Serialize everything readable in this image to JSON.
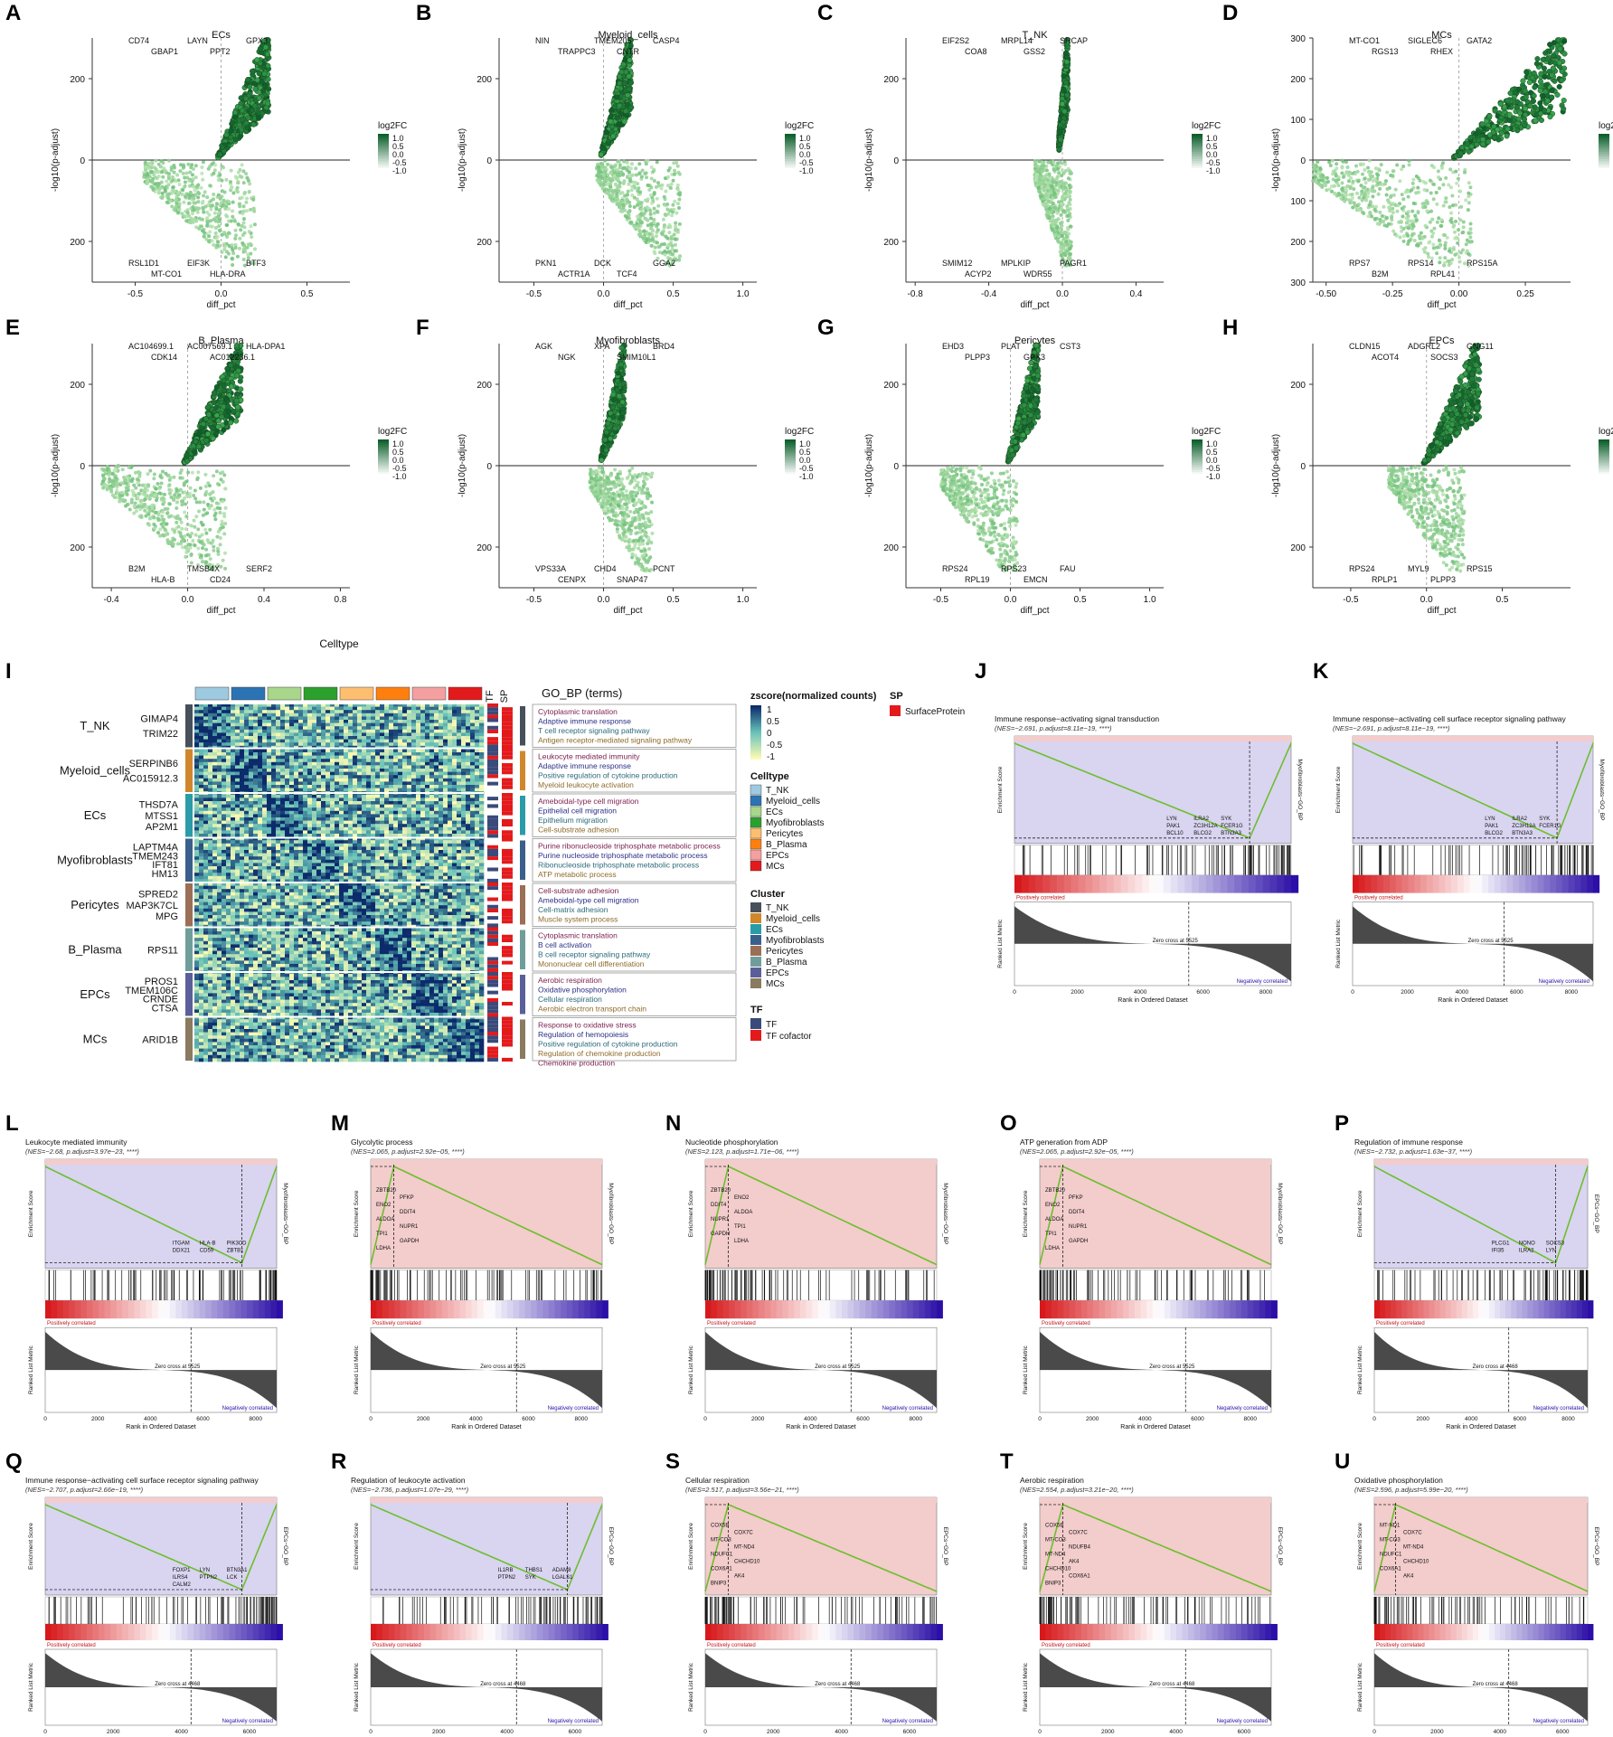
{
  "panel_letters": [
    "A",
    "B",
    "C",
    "D",
    "E",
    "F",
    "G",
    "H",
    "I",
    "J",
    "K",
    "L",
    "M",
    "N",
    "O",
    "P",
    "Q",
    "R",
    "S",
    "T",
    "U"
  ],
  "colors": {
    "green_dark": "#0b5e2a",
    "green_mid": "#3aa650",
    "green_light": "#b9e3b2",
    "gsea_line": "#6cbf2c",
    "gsea_neg_bg": "#d9d4f0",
    "gsea_pos_bg": "#f3cccc",
    "hm_low": "#fdfbb3",
    "hm_mid": "#67c2b9",
    "hm_high": "#0c2b6b"
  },
  "volcano": {
    "xlabel": "diff_pct",
    "ylabel": "-log10(p-adjust)",
    "legend_title": "log2FC",
    "legend_ticks": [
      "1.0",
      "0.5",
      "0.0",
      "-0.5",
      "-1.0"
    ]
  },
  "chart_data": [
    {
      "panel": "A",
      "type": "scatter",
      "title": "ECs",
      "xlim": [
        -0.75,
        0.75
      ],
      "xticks": [
        "-0.5",
        "0.0",
        "0.5"
      ],
      "ylim": [
        -300,
        300
      ],
      "yticks": [
        "200",
        "0",
        "200"
      ],
      "up_labels": [
        "CD74",
        "LAYN",
        "GPX3",
        "GBAP1",
        "PPT2"
      ],
      "down_labels": [
        "RSL1D1",
        "EIF3K",
        "BTF3",
        "MT-CO1",
        "HLA-DRA"
      ]
    },
    {
      "panel": "B",
      "type": "scatter",
      "title": "Myeloid_cells",
      "xlim": [
        -0.75,
        1.1
      ],
      "xticks": [
        "-0.5",
        "0.0",
        "0.5",
        "1.0"
      ],
      "ylim": [
        -300,
        300
      ],
      "yticks": [
        "200",
        "0",
        "200"
      ],
      "up_labels": [
        "NIN",
        "TMEM205",
        "CASP4",
        "TRAPPC3",
        "CNTR"
      ],
      "down_labels": [
        "PKN1",
        "DCK",
        "GGA2",
        "ACTR1A",
        "TCF4"
      ]
    },
    {
      "panel": "C",
      "type": "scatter",
      "title": "T_NK",
      "xlim": [
        -0.85,
        0.55
      ],
      "xticks": [
        "-0.8",
        "-0.4",
        "0.0",
        "0.4"
      ],
      "ylim": [
        -300,
        300
      ],
      "yticks": [
        "200",
        "0",
        "200"
      ],
      "up_labels": [
        "EIF2S2",
        "MRPL14",
        "SRCAP",
        "COA8",
        "GSS2"
      ],
      "down_labels": [
        "SMIM12",
        "MPLKIP",
        "PAGR1",
        "ACYP2",
        "WDR55"
      ]
    },
    {
      "panel": "D",
      "type": "scatter",
      "title": "MCs",
      "xlim": [
        -0.55,
        0.42
      ],
      "xticks": [
        "-0.50",
        "-0.25",
        "0.00",
        "0.25"
      ],
      "ylim": [
        -300,
        300
      ],
      "yticks": [
        "300",
        "200",
        "100",
        "0",
        "100",
        "200",
        "300"
      ],
      "up_labels": [
        "MT-CO1",
        "SIGLEC6",
        "GATA2",
        "RGS13",
        "RHEX"
      ],
      "down_labels": [
        "RPS7",
        "RPS14",
        "RPS15A",
        "B2M",
        "RPL41"
      ]
    },
    {
      "panel": "E",
      "type": "scatter",
      "title": "B_Plasma",
      "xlim": [
        -0.5,
        0.85
      ],
      "xticks": [
        "-0.4",
        "0.0",
        "0.4",
        "0.8"
      ],
      "ylim": [
        -300,
        300
      ],
      "yticks": [
        "200",
        "0",
        "200"
      ],
      "up_labels": [
        "AC104699.1",
        "AC007569.1",
        "HLA-DPA1",
        "CDK14",
        "AC012236.1"
      ],
      "down_labels": [
        "B2M",
        "TMSB4X",
        "SERF2",
        "HLA-B",
        "CD24"
      ]
    },
    {
      "panel": "F",
      "type": "scatter",
      "title": "Myofibroblasts",
      "xlim": [
        -0.75,
        1.1
      ],
      "xticks": [
        "-0.5",
        "0.0",
        "0.5",
        "1.0"
      ],
      "ylim": [
        -300,
        300
      ],
      "yticks": [
        "200",
        "0",
        "200"
      ],
      "up_labels": [
        "AGK",
        "XPA",
        "BRD4",
        "NGK",
        "SMIM10L1"
      ],
      "down_labels": [
        "VPS33A",
        "CHD4",
        "PCNT",
        "CENPX",
        "SNAP47"
      ]
    },
    {
      "panel": "G",
      "type": "scatter",
      "title": "Pericytes",
      "xlim": [
        -0.75,
        1.1
      ],
      "xticks": [
        "-0.5",
        "0.0",
        "0.5",
        "1.0"
      ],
      "ylim": [
        -300,
        300
      ],
      "yticks": [
        "200",
        "0",
        "200"
      ],
      "up_labels": [
        "EHD3",
        "PLAT",
        "CST3",
        "PLPP3",
        "GPX3"
      ],
      "down_labels": [
        "RPS24",
        "RPS23",
        "FAU",
        "RPL19",
        "EMCN"
      ]
    },
    {
      "panel": "H",
      "type": "scatter",
      "title": "EPCs",
      "xlim": [
        -0.75,
        0.95
      ],
      "xticks": [
        "-0.5",
        "0.0",
        "0.5"
      ],
      "ylim": [
        -300,
        300
      ],
      "yticks": [
        "200",
        "0",
        "200"
      ],
      "up_labels": [
        "CLDN15",
        "ADGRL2",
        "GNG11",
        "ACOT4",
        "SOCS3"
      ],
      "down_labels": [
        "RPS24",
        "MYL9",
        "RPS15",
        "RPLP1",
        "PLPP3"
      ]
    },
    {
      "panel": "I",
      "type": "heatmap",
      "title": "Celltype",
      "celltypes": [
        "T_NK",
        "Myeloid_cells",
        "ECs",
        "Myofibroblasts",
        "Pericytes",
        "B_Plasma",
        "EPCs",
        "MCs"
      ],
      "celltype_colors": [
        "#9ecae1",
        "#2b73b4",
        "#a8d68a",
        "#2ca02c",
        "#fdbf6f",
        "#ff7f0e",
        "#f4a0a0",
        "#e31a1c"
      ],
      "cluster_colors": [
        "#46505a",
        "#d0872b",
        "#2a9ca8",
        "#3a5f8a",
        "#9a6f55",
        "#6f9e9a",
        "#5a5f9a",
        "#8a7a60"
      ],
      "row_groups": [
        {
          "cluster": "T_NK",
          "genes": [
            "GIMAP4",
            "TRIM22"
          ]
        },
        {
          "cluster": "Myeloid_cells",
          "genes": [
            "SERPINB6",
            "AC015912.3"
          ]
        },
        {
          "cluster": "ECs",
          "genes": [
            "THSD7A",
            "MTSS1",
            "AP2M1"
          ]
        },
        {
          "cluster": "Myofibroblasts",
          "genes": [
            "LAPTM4A",
            "TMEM243",
            "IFT81",
            "HM13"
          ]
        },
        {
          "cluster": "Pericytes",
          "genes": [
            "SPRED2",
            "MAP3K7CL",
            "MPG"
          ]
        },
        {
          "cluster": "B_Plasma",
          "genes": [
            "RPS11"
          ]
        },
        {
          "cluster": "EPCs",
          "genes": [
            "PROS1",
            "TMEM106C",
            "CRNDE",
            "CTSA"
          ]
        },
        {
          "cluster": "MCs",
          "genes": [
            "ARID1B"
          ]
        }
      ],
      "go_terms": [
        [
          "Cytoplasmic translation",
          "Adaptive immune response",
          "T cell receptor signaling pathway",
          "Antigen receptor-mediated signaling pathway"
        ],
        [
          "Leukocyte mediated immunity",
          "Adaptive immune response",
          "Positive regulation of cytokine production",
          "Myeloid leukocyte activation"
        ],
        [
          "Ameboidal-type cell migration",
          "Epithelial cell migration",
          "Epithelium migration",
          "Cell-substrate adhesion"
        ],
        [
          "Purine ribonucleoside triphosphate metabolic process",
          "Purine nucleoside triphosphate metabolic process",
          "Ribonucleoside triphosphate metabolic process",
          "ATP metabolic process"
        ],
        [
          "Cell-substrate adhesion",
          "Ameboidal-type cell migration",
          "Cell-matrix adhesion",
          "Muscle system process"
        ],
        [
          "Cytoplasmic translation",
          "B cell activation",
          "B cell receptor signaling pathway",
          "Mononuclear cell differentiation"
        ],
        [
          "Aerobic respiration",
          "Oxidative phosphorylation",
          "Cellular respiration",
          "Aerobic electron transport chain"
        ],
        [
          "Response to oxidative stress",
          "Regulation of hemopoiesis",
          "Positive regulation of cytokine production",
          "Regulation of chemokine production",
          "Chemokine production"
        ]
      ],
      "go_term_colors": [
        "#7b1e4e",
        "#2b2f86",
        "#2b6a7a",
        "#8f6b2a"
      ],
      "col_headers": [
        "TF",
        "SP"
      ],
      "go_title": "GO_BP (terms)",
      "legend": {
        "zscore_title": "zscore(normalized counts)",
        "zscore_ticks": [
          "1",
          "0.5",
          "0",
          "-0.5",
          "-1"
        ],
        "celltype_title": "Celltype",
        "cluster_title": "Cluster",
        "tf_title": "TF",
        "tf_items": [
          "TF",
          "TF cofactor"
        ],
        "tf_colors": [
          "#3a4a7a",
          "#e31a1c"
        ],
        "sp_title": "SP",
        "sp_items": [
          "SurfaceProtein"
        ],
        "sp_color": "#e31a1c"
      }
    }
  ],
  "gsea": {
    "y_es_label": "Enrichment Score",
    "y_rank_label": "Ranked List Metric",
    "x_label": "Rank in Ordered Dataset",
    "pos_text": "Positively correlated",
    "neg_text": "Negatively correlated",
    "panels": [
      {
        "panel": "J",
        "title": "Immune response−activating signal transduction",
        "stats": "(NES=−2.691, p.adjust=8.11e−19, ****)",
        "direction": "neg",
        "side": "Myofibroblasts−GO_BP",
        "zero_text": "Zero cross at 5525",
        "xticks": [
          "0",
          "2000",
          "4000",
          "6000",
          "8000"
        ],
        "genes": [
          "LYN",
          "ILRA2",
          "SYK",
          "PAK1",
          "ZC3H12A",
          "FCER1G",
          "BCL10",
          "BLCG2",
          "BTN3A3"
        ]
      },
      {
        "panel": "K",
        "title": "Immune response−activating cell surface receptor signaling pathway",
        "stats": "(NES=−2.691, p.adjust=8.11e−19, ****)",
        "direction": "neg",
        "side": "Myofibroblasts−GO_BP",
        "zero_text": "Zero cross at 5525",
        "xticks": [
          "0",
          "2000",
          "4000",
          "6000",
          "8000"
        ],
        "genes": [
          "LYN",
          "ILRA2",
          "SYK",
          "PAK1",
          "ZC3H12A",
          "FCER1G",
          "BLCG2",
          "BTN3A3"
        ]
      },
      {
        "panel": "L",
        "title": "Leukocyte mediated immunity",
        "stats": "(NES=−2.68, p.adjust=3.97e−23, ****)",
        "direction": "neg",
        "side": "Myofibroblasts−GO_BP",
        "zero_text": "Zero cross at 5525",
        "xticks": [
          "0",
          "2000",
          "4000",
          "6000",
          "8000"
        ],
        "genes": [
          "ITGAM",
          "HLA-B",
          "PIK3CD",
          "DDX21",
          "CD59",
          "ZBTB1"
        ]
      },
      {
        "panel": "M",
        "title": "Glycolytic process",
        "stats": "(NES=2.065, p.adjust=2.92e−05, ****)",
        "direction": "pos",
        "side": "Myofibroblasts−GO_BP",
        "zero_text": "Zero cross at 5525",
        "xticks": [
          "0",
          "2000",
          "4000",
          "6000",
          "8000"
        ],
        "genes": [
          "ZBTB20",
          "PFKP",
          "ENO2",
          "DDIT4",
          "ALDOA",
          "NUPR1",
          "TPI1",
          "GAPDH",
          "LDHA"
        ]
      },
      {
        "panel": "N",
        "title": "Nucleotide phosphorylation",
        "stats": "(NES=2.123, p.adjust=1.71e−06, ****)",
        "direction": "pos",
        "side": "Myofibroblasts−GO_BP",
        "zero_text": "Zero cross at 5525",
        "xticks": [
          "0",
          "2000",
          "4000",
          "6000",
          "8000"
        ],
        "genes": [
          "ZBTB20",
          "ENO2",
          "DDIT4",
          "ALDOA",
          "NUPR1",
          "TPI1",
          "GAPDH",
          "LDHA"
        ]
      },
      {
        "panel": "O",
        "title": "ATP generation from ADP",
        "stats": "(NES=2.065, p.adjust=2.92e−05, ****)",
        "direction": "pos",
        "side": "Myofibroblasts−GO_BP",
        "zero_text": "Zero cross at 5525",
        "xticks": [
          "0",
          "2000",
          "4000",
          "6000",
          "8000"
        ],
        "genes": [
          "ZBTB20",
          "PFKP",
          "ENO2",
          "DDIT4",
          "ALDOA",
          "NUPR1",
          "TPI1",
          "GAPDH",
          "LDHA"
        ]
      },
      {
        "panel": "P",
        "title": "Regulation of immune response",
        "stats": "(NES=−2.732, p.adjust=1.63e−37, ****)",
        "direction": "neg",
        "side": "EPCs−GO_BP",
        "zero_text": "Zero cross at 4468",
        "xticks": [
          "0",
          "2000",
          "4000",
          "6000",
          "8000"
        ],
        "genes": [
          "PLCG1",
          "NONO",
          "SOCS3",
          "IFI35",
          "ILRA2",
          "LYN"
        ]
      },
      {
        "panel": "Q",
        "title": "Immune response−activating cell surface receptor signaling pathway",
        "stats": "(NES=−2.707, p.adjust=2.66e−19, ****)",
        "direction": "neg",
        "side": "EPCs−GO_BP",
        "zero_text": "Zero cross at 4468",
        "xticks": [
          "0",
          "2000",
          "4000",
          "6000"
        ],
        "genes": [
          "FOXP1",
          "LYN",
          "BTN3A1",
          "ILRS4",
          "PTPN2",
          "LCK",
          "CALM2"
        ]
      },
      {
        "panel": "R",
        "title": "Regulation of leukocyte activation",
        "stats": "(NES=−2.736, p.adjust=1.07e−29, ****)",
        "direction": "neg",
        "side": "EPCs−GO_BP",
        "zero_text": "Zero cross at 4468",
        "xticks": [
          "0",
          "2000",
          "4000",
          "6000"
        ],
        "genes": [
          "IL1RB",
          "THBS1",
          "ADAM8",
          "PTPN2",
          "SYK",
          "LGALS1"
        ]
      },
      {
        "panel": "S",
        "title": "Cellular respiration",
        "stats": "(NES=2.517, p.adjust=3.56e−21, ****)",
        "direction": "pos",
        "side": "EPCs−GO_BP",
        "zero_text": "Zero cross at 4468",
        "xticks": [
          "0",
          "2000",
          "4000",
          "6000"
        ],
        "genes": [
          "COX5B",
          "COX7C",
          "MT-CO3",
          "MT-ND4",
          "NDUFC1",
          "CHCHD10",
          "COX6A1",
          "AK4",
          "BNIP3"
        ]
      },
      {
        "panel": "T",
        "title": "Aerobic respiration",
        "stats": "(NES=2.554, p.adjust=3.21e−20, ****)",
        "direction": "pos",
        "side": "EPCs−GO_BP",
        "zero_text": "Zero cross at 4468",
        "xticks": [
          "0",
          "2000",
          "4000",
          "6000"
        ],
        "genes": [
          "COX5B",
          "COX7C",
          "MT-CO3",
          "NDUFB4",
          "MT-ND4",
          "AK4",
          "CHCHD10",
          "COX6A1",
          "BNIP3"
        ]
      },
      {
        "panel": "U",
        "title": "Oxidative phosphorylation",
        "stats": "(NES=2.596, p.adjust=5.99e−20, ****)",
        "direction": "pos",
        "side": "EPCs−GO_BP",
        "zero_text": "Zero cross at 4468",
        "xticks": [
          "0",
          "2000",
          "4000",
          "6000"
        ],
        "genes": [
          "MT-ND1",
          "COX7C",
          "MT-CO3",
          "MT-ND4",
          "NDUFC1",
          "CHCHD10",
          "COX6A1",
          "AK4"
        ]
      }
    ]
  }
}
